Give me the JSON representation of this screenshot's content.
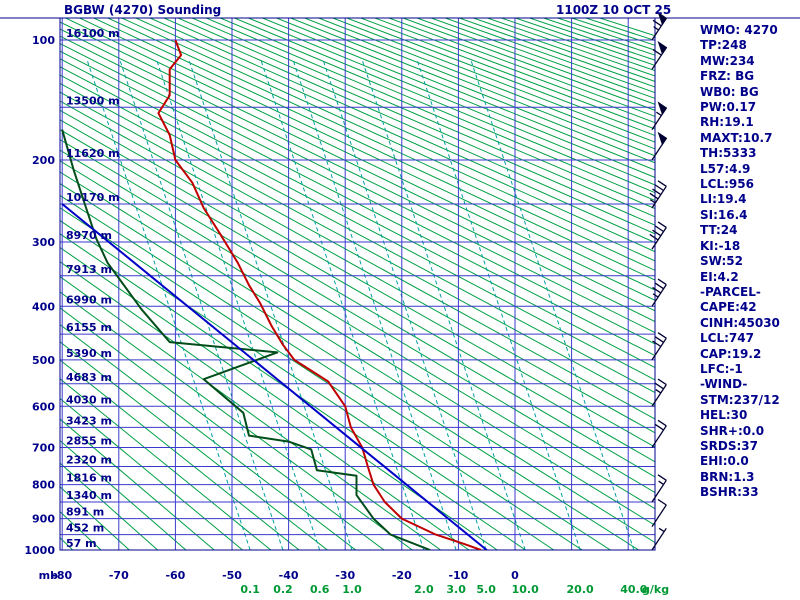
{
  "header": {
    "title": "BGBW (4270) Sounding",
    "datetime": "1100Z 10 OCT 25"
  },
  "stats_panel": {
    "lines": [
      "WMO: 4270",
      "TP:248",
      "MW:234",
      "FRZ: BG",
      "WB0: BG",
      "PW:0.17",
      "RH:19.1",
      "MAXT:10.7",
      "TH:5333",
      "L57:4.9",
      "LCL:956",
      "LI:19.4",
      "SI:16.4",
      "TT:24",
      "KI:-18",
      "SW:52",
      "EI:4.2",
      "-PARCEL-",
      "CAPE:42",
      "CINH:45030",
      "LCL:747",
      "CAP:19.2",
      "LFC:-1",
      "-WIND-",
      "STM:237/12",
      "HEL:30",
      "SHR+:0.0",
      "SRDS:37",
      "EHI:0.0",
      "BRN:1.3",
      "BSHR:33"
    ]
  },
  "chart_data": {
    "type": "line",
    "subtype": "stuve-sounding-diagram",
    "title": "BGBW (4270) Sounding",
    "axes": {
      "pressure": {
        "unit": "mb",
        "min": 100,
        "max": 1000,
        "scale": "p^0.286",
        "tick_labels": [
          100,
          200,
          300,
          400,
          500,
          600,
          700,
          800,
          900,
          1000
        ],
        "isobar_step_mb": 50
      },
      "temperature": {
        "unit": "C",
        "tick_labels": [
          -80,
          -70,
          -60,
          -50,
          -40,
          -30,
          -20,
          -10,
          0
        ],
        "isotherm_lines_c": [
          -80,
          -70,
          -60,
          -50,
          -40,
          -30,
          -20,
          -10,
          0,
          10,
          20
        ]
      },
      "altitude_labels": [
        {
          "p": 100,
          "label": "16100 m"
        },
        {
          "p": 150,
          "label": "13500 m"
        },
        {
          "p": 200,
          "label": "11620 m"
        },
        {
          "p": 250,
          "label": "10170 m"
        },
        {
          "p": 300,
          "label": "8970 m"
        },
        {
          "p": 350,
          "label": "7913 m"
        },
        {
          "p": 400,
          "label": "6990 m"
        },
        {
          "p": 450,
          "label": "6155 m"
        },
        {
          "p": 500,
          "label": "5390 m"
        },
        {
          "p": 550,
          "label": "4683 m"
        },
        {
          "p": 600,
          "label": "4030 m"
        },
        {
          "p": 650,
          "label": "3423 m"
        },
        {
          "p": 700,
          "label": "2855 m"
        },
        {
          "p": 750,
          "label": "2320 m"
        },
        {
          "p": 800,
          "label": "1816 m"
        },
        {
          "p": 850,
          "label": "1340 m"
        },
        {
          "p": 900,
          "label": "891 m"
        },
        {
          "p": 950,
          "label": "452 m"
        },
        {
          "p": 1000,
          "label": "57 m"
        }
      ]
    },
    "grid": {
      "theta_min_k": 195,
      "theta_max_k": 580,
      "theta_step_k": 5
    },
    "mixing_ratio_unit": "g/kg",
    "mixing_ratio_lines": [
      {
        "value": "0.1",
        "t_at_1000mb": -46.8
      },
      {
        "value": "0.2",
        "t_at_1000mb": -41.0
      },
      {
        "value": "0.6",
        "t_at_1000mb": -34.5
      },
      {
        "value": "1.0",
        "t_at_1000mb": -28.8
      },
      {
        "value": "2.0",
        "t_at_1000mb": -16.1
      },
      {
        "value": "3.0",
        "t_at_1000mb": -10.4
      },
      {
        "value": "5.0",
        "t_at_1000mb": -5.1
      },
      {
        "value": "10.0",
        "t_at_1000mb": 1.8
      },
      {
        "value": "20.0",
        "t_at_1000mb": 11.5
      },
      {
        "value": "40.0",
        "t_at_1000mb": 21.0
      }
    ],
    "series": [
      {
        "name": "temperature",
        "label": "Temperature",
        "points": [
          [
            100,
            -60
          ],
          [
            110,
            -59
          ],
          [
            120,
            -61
          ],
          [
            140,
            -61
          ],
          [
            155,
            -63
          ],
          [
            175,
            -61
          ],
          [
            200,
            -60
          ],
          [
            225,
            -57
          ],
          [
            255,
            -55
          ],
          [
            290,
            -52
          ],
          [
            330,
            -49
          ],
          [
            365,
            -47
          ],
          [
            395,
            -45
          ],
          [
            435,
            -43
          ],
          [
            470,
            -41
          ],
          [
            500,
            -39
          ],
          [
            545,
            -33
          ],
          [
            600,
            -30
          ],
          [
            650,
            -29
          ],
          [
            700,
            -27
          ],
          [
            750,
            -26
          ],
          [
            800,
            -25
          ],
          [
            850,
            -23
          ],
          [
            900,
            -20
          ],
          [
            950,
            -14
          ],
          [
            980,
            -9
          ],
          [
            1000,
            -6
          ]
        ]
      },
      {
        "name": "dewpoint",
        "label": "Dewpoint",
        "points": [
          [
            170,
            -80
          ],
          [
            210,
            -78
          ],
          [
            250,
            -76
          ],
          [
            295,
            -74
          ],
          [
            330,
            -72
          ],
          [
            405,
            -66
          ],
          [
            465,
            -61
          ],
          [
            485,
            -42
          ],
          [
            540,
            -55
          ],
          [
            615,
            -48
          ],
          [
            670,
            -47
          ],
          [
            685,
            -40
          ],
          [
            705,
            -36
          ],
          [
            760,
            -35
          ],
          [
            775,
            -28
          ],
          [
            830,
            -28
          ],
          [
            900,
            -25
          ],
          [
            950,
            -22
          ],
          [
            1000,
            -15
          ]
        ]
      },
      {
        "name": "parcel",
        "label": "Parcel path",
        "points": [
          [
            1000,
            -5
          ],
          [
            250,
            -80
          ]
        ]
      }
    ],
    "wind_barbs": [
      {
        "p": 100,
        "speed_kt": 65
      },
      {
        "p": 120,
        "speed_kt": 60
      },
      {
        "p": 170,
        "speed_kt": 55
      },
      {
        "p": 200,
        "speed_kt": 50
      },
      {
        "p": 255,
        "speed_kt": 45
      },
      {
        "p": 310,
        "speed_kt": 40
      },
      {
        "p": 400,
        "speed_kt": 35
      },
      {
        "p": 500,
        "speed_kt": 30
      },
      {
        "p": 600,
        "speed_kt": 25
      },
      {
        "p": 700,
        "speed_kt": 20
      },
      {
        "p": 850,
        "speed_kt": 15
      },
      {
        "p": 925,
        "speed_kt": 10
      },
      {
        "p": 1000,
        "speed_kt": 5
      }
    ],
    "colors": {
      "frame": "#00008b",
      "grid": "#3a3acc",
      "adiabat": "#00a044",
      "mixing": "#00a0a0",
      "temperature": "#c00000",
      "dewpoint": "#004d1a",
      "parcel": "#0000c8",
      "barb": "#000033",
      "text": "#00008b",
      "mixing_label": "#009933"
    }
  }
}
